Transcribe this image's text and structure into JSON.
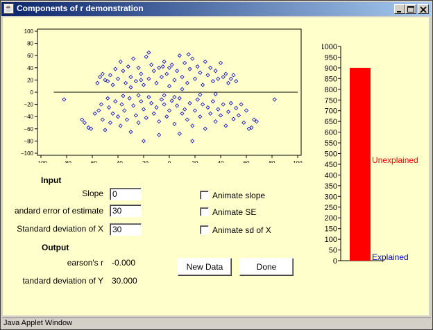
{
  "window": {
    "title": "Components of r demonstration",
    "status": "Java Applet Window",
    "buttons": {
      "minimize": "_",
      "maximize": "□",
      "close": "×"
    }
  },
  "input": {
    "heading": "Input",
    "slope_label": "Slope",
    "slope_value": "0",
    "se_label": "andard error of estimate",
    "se_value": "30",
    "sdx_label": "Standard deviation of X",
    "sdx_value": "30"
  },
  "checkboxes": {
    "animate_slope": "Animate slope",
    "animate_se": "Animate SE",
    "animate_sdx": "Animate sd of X"
  },
  "output": {
    "heading": "Output",
    "pearson_label": "earson's r",
    "pearson_value": "-0.000",
    "sdy_label": "tandard deviation of Y",
    "sdy_value": "30.000"
  },
  "buttons": {
    "new_data": "New Data",
    "done": "Done"
  },
  "colors": {
    "point": "#0000cc",
    "bar": "#ff0000",
    "unexplained": "#ff0000",
    "explained": "#0000cc",
    "background": "#ffffcc"
  },
  "chart_data": [
    {
      "type": "scatter",
      "xlim": [
        -100,
        100
      ],
      "ylim": [
        -100,
        100
      ],
      "xticks": [
        "−100",
        "−80",
        "−60",
        "−40",
        "−20",
        "0",
        "20",
        "40",
        "60",
        "80",
        "100"
      ],
      "yticks": [
        "100",
        "80",
        "60",
        "40",
        "20",
        "0",
        "−20",
        "−40",
        "−60",
        "−80",
        "−100"
      ],
      "regression_line": {
        "slope": 0,
        "intercept": 0,
        "x_range": [
          -100,
          100
        ]
      },
      "points": [
        [
          -82,
          -12
        ],
        [
          -68,
          -45
        ],
        [
          -66,
          -50
        ],
        [
          -63,
          -58
        ],
        [
          -61,
          -60
        ],
        [
          -58,
          -35
        ],
        [
          -55,
          -30
        ],
        [
          -53,
          -20
        ],
        [
          -52,
          -45
        ],
        [
          -50,
          -62
        ],
        [
          -48,
          -10
        ],
        [
          -47,
          -25
        ],
        [
          -46,
          -50
        ],
        [
          -44,
          -35
        ],
        [
          -42,
          -15
        ],
        [
          -40,
          -40
        ],
        [
          -38,
          -55
        ],
        [
          -37,
          -20
        ],
        [
          -35,
          -30
        ],
        [
          -33,
          -45
        ],
        [
          -31,
          -10
        ],
        [
          -30,
          -65
        ],
        [
          -28,
          -22
        ],
        [
          -26,
          -38
        ],
        [
          -24,
          -50
        ],
        [
          -22,
          -15
        ],
        [
          -20,
          -28
        ],
        [
          -18,
          -42
        ],
        [
          -16,
          -8
        ],
        [
          -14,
          -18
        ],
        [
          -12,
          -35
        ],
        [
          -10,
          -25
        ],
        [
          -8,
          -48
        ],
        [
          -6,
          -12
        ],
        [
          -4,
          -20
        ],
        [
          -2,
          -40
        ],
        [
          0,
          -30
        ],
        [
          2,
          -14
        ],
        [
          4,
          -52
        ],
        [
          6,
          -22
        ],
        [
          8,
          -10
        ],
        [
          10,
          -35
        ],
        [
          12,
          -28
        ],
        [
          14,
          -45
        ],
        [
          16,
          -18
        ],
        [
          18,
          -55
        ],
        [
          20,
          -30
        ],
        [
          22,
          -12
        ],
        [
          24,
          -40
        ],
        [
          26,
          -20
        ],
        [
          28,
          -60
        ],
        [
          30,
          -25
        ],
        [
          32,
          -35
        ],
        [
          34,
          -15
        ],
        [
          36,
          -48
        ],
        [
          38,
          -28
        ],
        [
          40,
          -38
        ],
        [
          42,
          -20
        ],
        [
          44,
          -55
        ],
        [
          46,
          -32
        ],
        [
          48,
          -18
        ],
        [
          50,
          -44
        ],
        [
          52,
          -26
        ],
        [
          54,
          -38
        ],
        [
          56,
          -20
        ],
        [
          58,
          -50
        ],
        [
          60,
          -30
        ],
        [
          62,
          -60
        ],
        [
          64,
          -58
        ],
        [
          66,
          -45
        ],
        [
          68,
          -48
        ],
        [
          82,
          -12
        ],
        [
          -56,
          15
        ],
        [
          -54,
          25
        ],
        [
          -52,
          30
        ],
        [
          -50,
          20
        ],
        [
          -48,
          18
        ],
        [
          -46,
          28
        ],
        [
          -44,
          12
        ],
        [
          -42,
          38
        ],
        [
          -40,
          22
        ],
        [
          -38,
          50
        ],
        [
          -36,
          35
        ],
        [
          -34,
          15
        ],
        [
          -32,
          42
        ],
        [
          -30,
          25
        ],
        [
          -28,
          55
        ],
        [
          -26,
          18
        ],
        [
          -24,
          40
        ],
        [
          -22,
          30
        ],
        [
          -20,
          12
        ],
        [
          -18,
          58
        ],
        [
          -16,
          22
        ],
        [
          -14,
          45
        ],
        [
          -12,
          35
        ],
        [
          -10,
          15
        ],
        [
          -8,
          40
        ],
        [
          -6,
          25
        ],
        [
          -4,
          50
        ],
        [
          -2,
          30
        ],
        [
          0,
          10
        ],
        [
          2,
          45
        ],
        [
          4,
          20
        ],
        [
          6,
          35
        ],
        [
          8,
          60
        ],
        [
          10,
          25
        ],
        [
          12,
          48
        ],
        [
          14,
          15
        ],
        [
          16,
          38
        ],
        [
          18,
          55
        ],
        [
          20,
          22
        ],
        [
          22,
          42
        ],
        [
          24,
          32
        ],
        [
          26,
          12
        ],
        [
          28,
          50
        ],
        [
          30,
          28
        ],
        [
          32,
          40
        ],
        [
          34,
          18
        ],
        [
          36,
          35
        ],
        [
          38,
          22
        ],
        [
          40,
          48
        ],
        [
          42,
          25
        ],
        [
          44,
          30
        ],
        [
          46,
          15
        ],
        [
          48,
          22
        ],
        [
          50,
          28
        ],
        [
          52,
          18
        ],
        [
          -22,
          20
        ],
        [
          -30,
          8
        ],
        [
          0,
          40
        ],
        [
          10,
          5
        ],
        [
          -16,
          65
        ],
        [
          15,
          62
        ],
        [
          -5,
          42
        ],
        [
          -20,
          -80
        ],
        [
          18,
          -80
        ],
        [
          -8,
          -70
        ],
        [
          8,
          -68
        ],
        [
          -4,
          -5
        ],
        [
          4,
          -8
        ],
        [
          -24,
          -5
        ],
        [
          24,
          -4
        ],
        [
          -36,
          -6
        ],
        [
          36,
          -3
        ]
      ]
    },
    {
      "type": "bar",
      "ylim": [
        0,
        1000
      ],
      "yticks": [
        "1000",
        "950",
        "900",
        "850",
        "800",
        "750",
        "700",
        "650",
        "600",
        "550",
        "500",
        "450",
        "400",
        "350",
        "300",
        "250",
        "200",
        "150",
        "100",
        "50",
        "0"
      ],
      "values": [
        900
      ],
      "labels": {
        "top": "Unexplained",
        "bottom": "Explained"
      }
    }
  ]
}
